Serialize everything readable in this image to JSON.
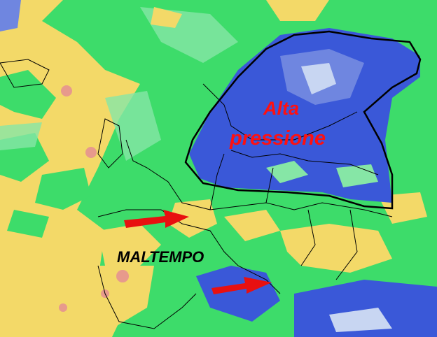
{
  "map": {
    "labels": {
      "high_pressure_line1": "Alta",
      "high_pressure_line2": "pressione",
      "bad_weather": "MALTEMPO"
    },
    "colors": {
      "high_pressure_text": "#ff1010",
      "bad_weather_text": "#000000",
      "arrow": "#e81010",
      "outline": "#000000",
      "anomaly_strong_negative": "#3a58d8",
      "anomaly_negative": "#6f86e0",
      "anomaly_weak_negative": "#c8d6f2",
      "anomaly_neutral_green": "#3ddc6a",
      "anomaly_light_green": "#86e6a6",
      "anomaly_positive_yellow": "#f3d968",
      "anomaly_strong_positive": "#e79a8c"
    },
    "arrows": [
      "arrow-toward-france",
      "arrow-toward-southern-italy"
    ]
  }
}
